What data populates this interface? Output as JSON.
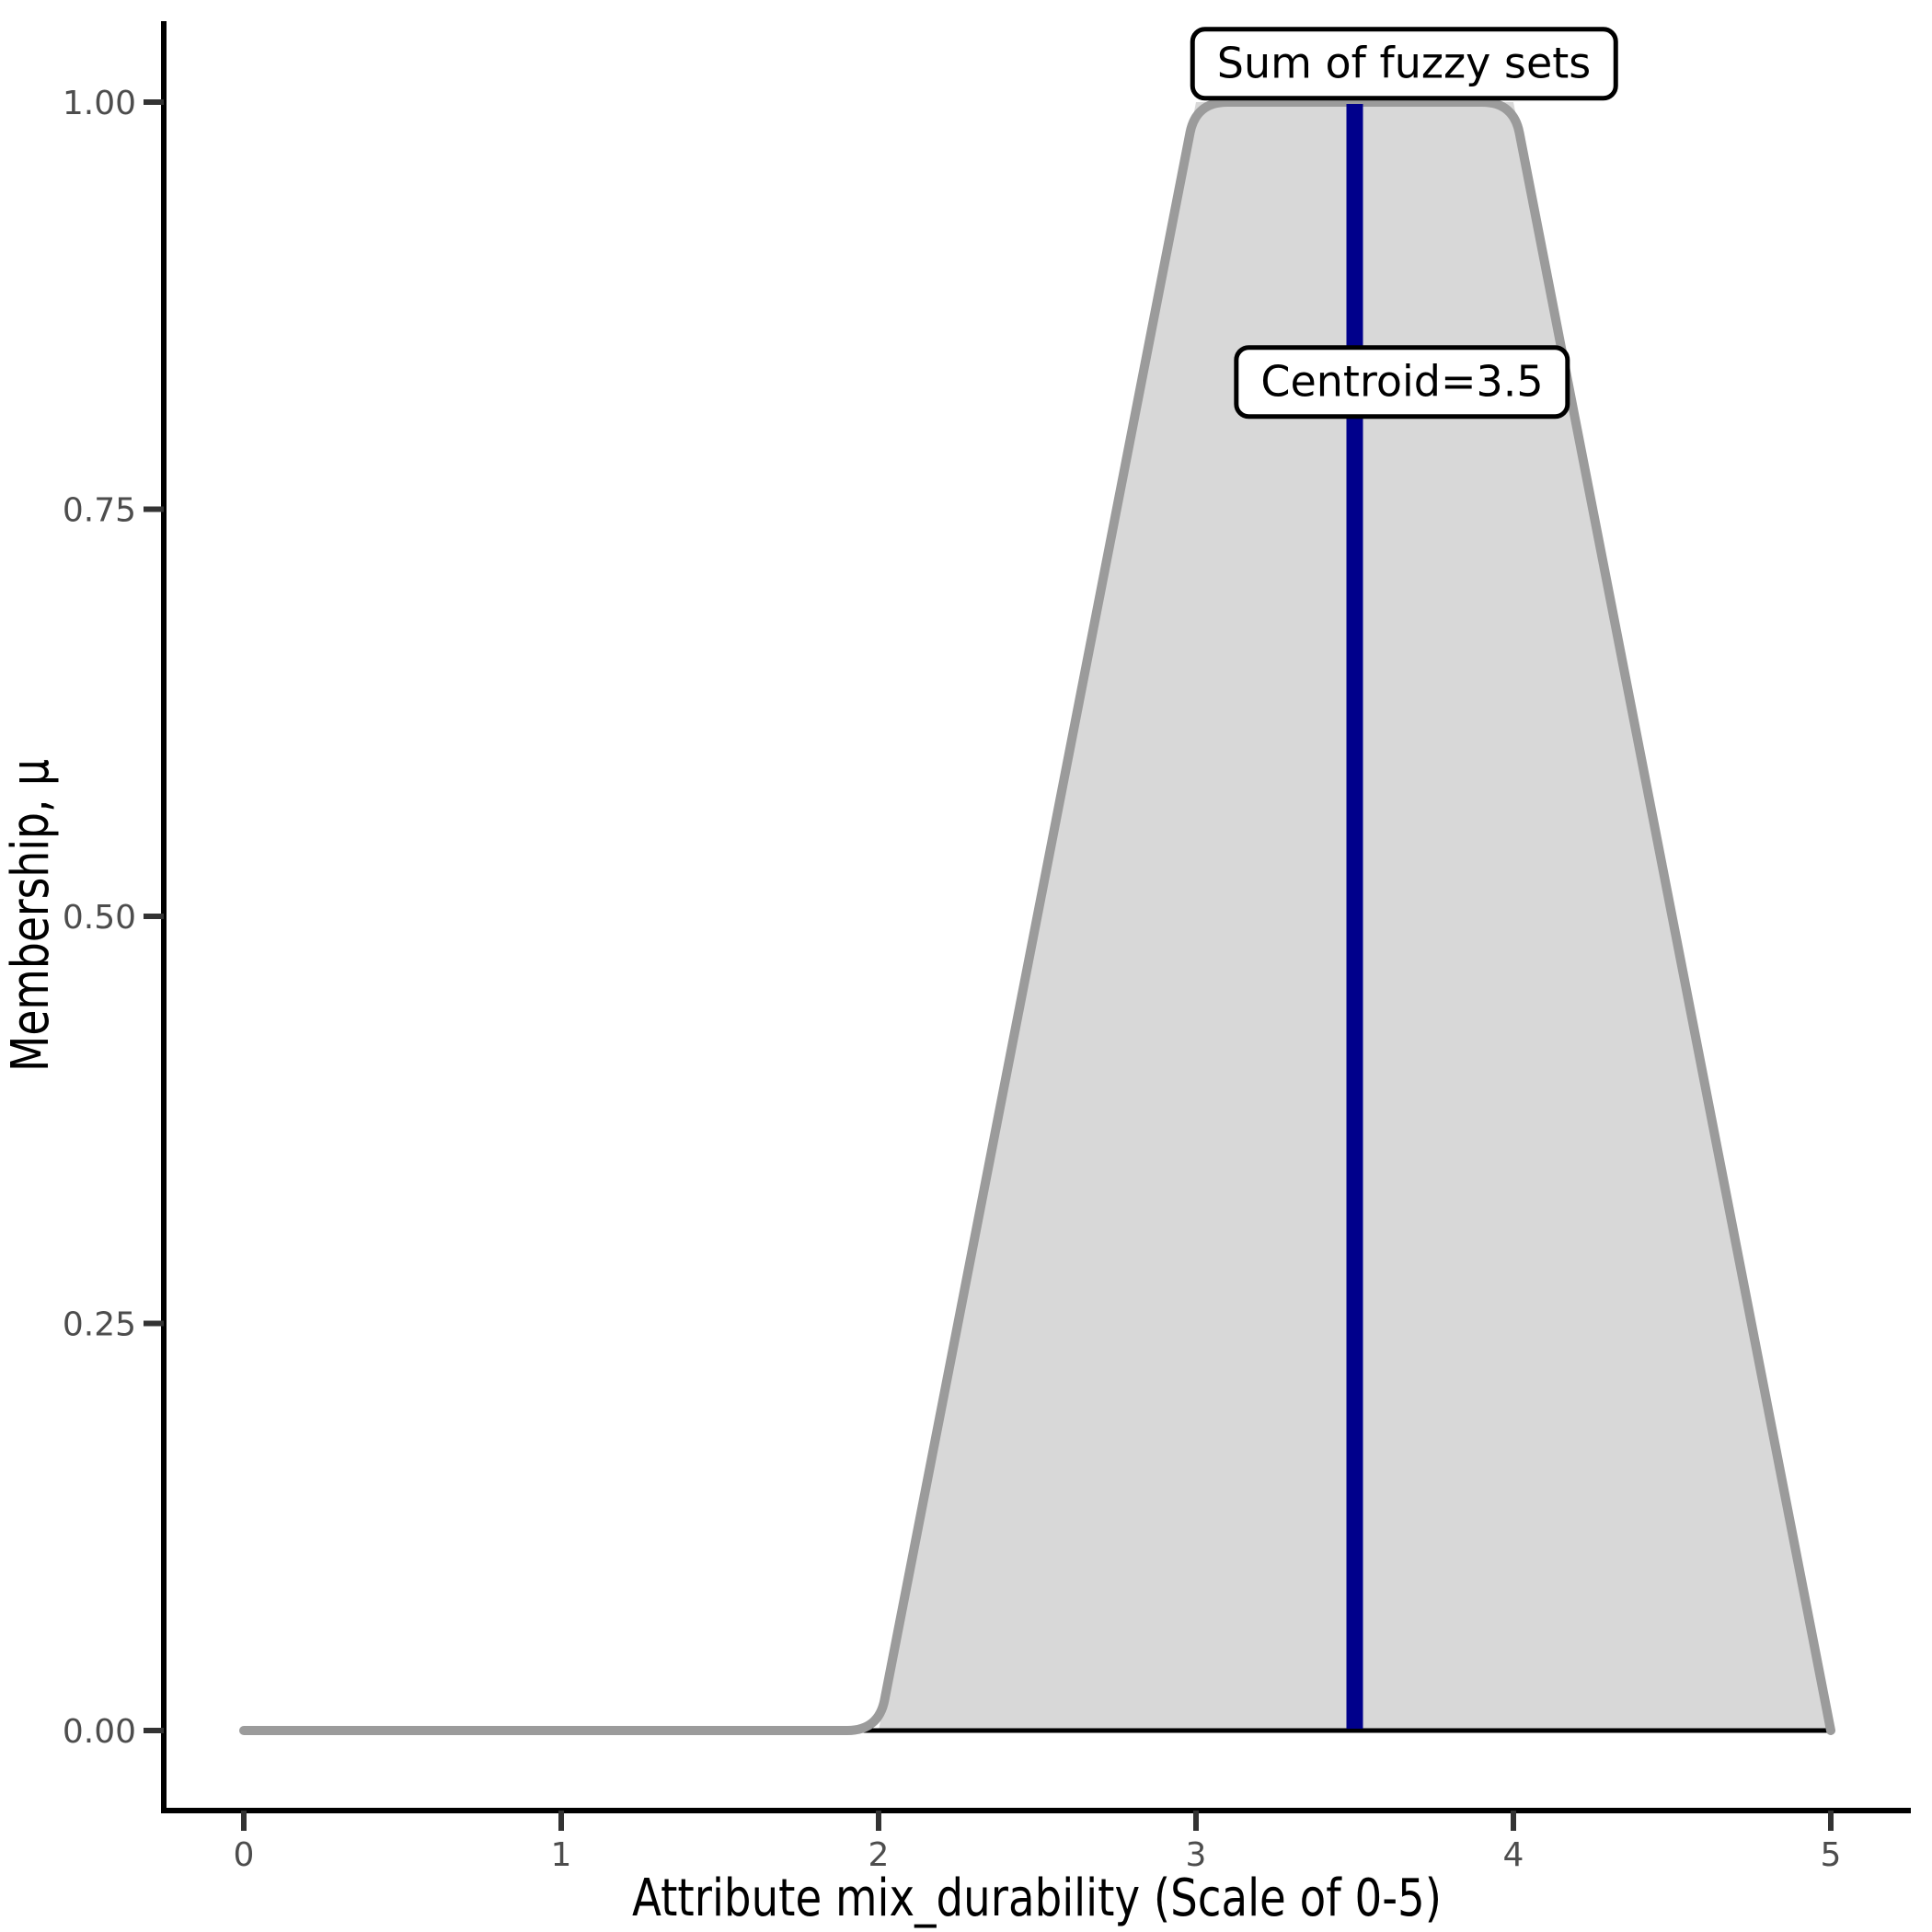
{
  "figure": {
    "background": "#ffffff",
    "colors": {
      "area_fill": "#d8d8d8",
      "curve_stroke": "#9b9b9b",
      "baseline_stroke": "#000000",
      "centroid_line": "#00008b",
      "spine": "#000000",
      "tick_mark": "#333333",
      "tick_label": "#4d4d4d",
      "annotation_border": "#000000",
      "annotation_bg": "#ffffff"
    }
  },
  "chart_data": {
    "type": "area",
    "title": "",
    "xlabel": "Attribute mix_durability (Scale of 0-5)",
    "ylabel": "Membership, μ",
    "xlim": [
      0,
      5
    ],
    "ylim": [
      0,
      1
    ],
    "x_ticks": [
      0,
      1,
      2,
      3,
      4,
      5
    ],
    "x_tick_labels": [
      "0",
      "1",
      "2",
      "3",
      "4",
      "5"
    ],
    "y_ticks": [
      0,
      0.25,
      0.5,
      0.75,
      1.0
    ],
    "y_tick_labels": [
      "0.00",
      "0.25",
      "0.50",
      "0.75",
      "1.00"
    ],
    "grid": false,
    "legend_position": "none",
    "series": [
      {
        "name": "Sum of fuzzy sets",
        "x": [
          0,
          2,
          3,
          4,
          5
        ],
        "y": [
          0,
          0,
          1,
          1,
          0
        ],
        "filled": true
      }
    ],
    "centroid": {
      "x": 3.5,
      "y_from": 0,
      "y_to": 1
    },
    "annotations": {
      "sum_label": "Sum of fuzzy sets",
      "centroid_label": "Centroid=3.5"
    }
  }
}
